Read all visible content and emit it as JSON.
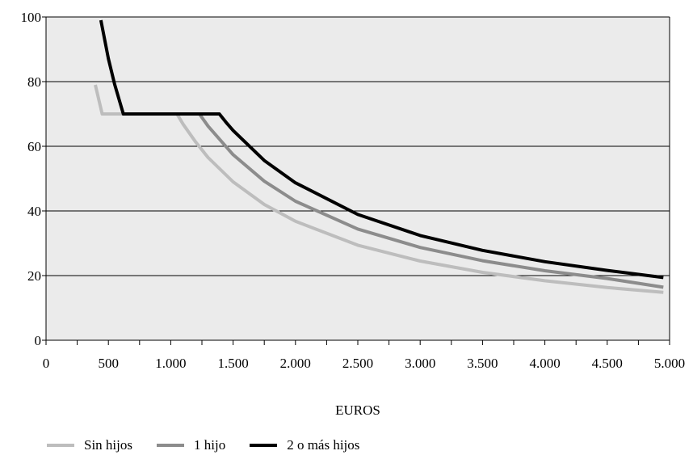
{
  "chart_data": {
    "type": "line",
    "xlabel": "EUROS",
    "ylabel": "",
    "xlim": [
      0,
      5000
    ],
    "ylim": [
      0,
      100
    ],
    "x_ticks": [
      0,
      500,
      1000,
      1500,
      2000,
      2500,
      3000,
      3500,
      4000,
      4500,
      5000
    ],
    "x_tick_labels": [
      "0",
      "500",
      "1.000",
      "1.500",
      "2.000",
      "2.500",
      "3.000",
      "3.500",
      "4.000",
      "4.500",
      "5.000"
    ],
    "y_ticks": [
      0,
      20,
      40,
      60,
      80,
      100
    ],
    "y_tick_labels": [
      "0",
      "20",
      "40",
      "60",
      "80",
      "100"
    ],
    "grid": "horizontal",
    "plot_background": "#ebebeb",
    "legend_position": "bottom",
    "series": [
      {
        "name": "Sin hijos",
        "color": "#bdbdbd",
        "x": [
          395,
          450,
          1050,
          1100,
          1200,
          1300,
          1500,
          1750,
          2000,
          2500,
          3000,
          3500,
          4000,
          4500,
          4950
        ],
        "y": [
          79,
          70,
          70,
          66.8,
          61.3,
          56.5,
          49.0,
          42.0,
          36.8,
          29.4,
          24.5,
          21.0,
          18.4,
          16.3,
          14.8
        ]
      },
      {
        "name": "1 hijo",
        "color": "#8c8c8c",
        "x": [
          1230,
          1300,
          1500,
          1750,
          2000,
          2500,
          3000,
          3500,
          4000,
          4500,
          4950
        ],
        "y": [
          70,
          66.2,
          57.4,
          49.2,
          43.0,
          34.4,
          28.7,
          24.6,
          21.5,
          19.1,
          16.4
        ]
      },
      {
        "name": "2 o más hijos",
        "color": "#000000",
        "x": [
          440,
          500,
          550,
          620,
          1000,
          1390,
          1450,
          1500,
          1750,
          2000,
          2500,
          3000,
          3500,
          4000,
          4500,
          4950
        ],
        "y": [
          99,
          87.1,
          79.2,
          70,
          70,
          70,
          67.1,
          64.9,
          55.6,
          48.7,
          38.9,
          32.4,
          27.8,
          24.3,
          21.6,
          19.4
        ]
      }
    ]
  }
}
